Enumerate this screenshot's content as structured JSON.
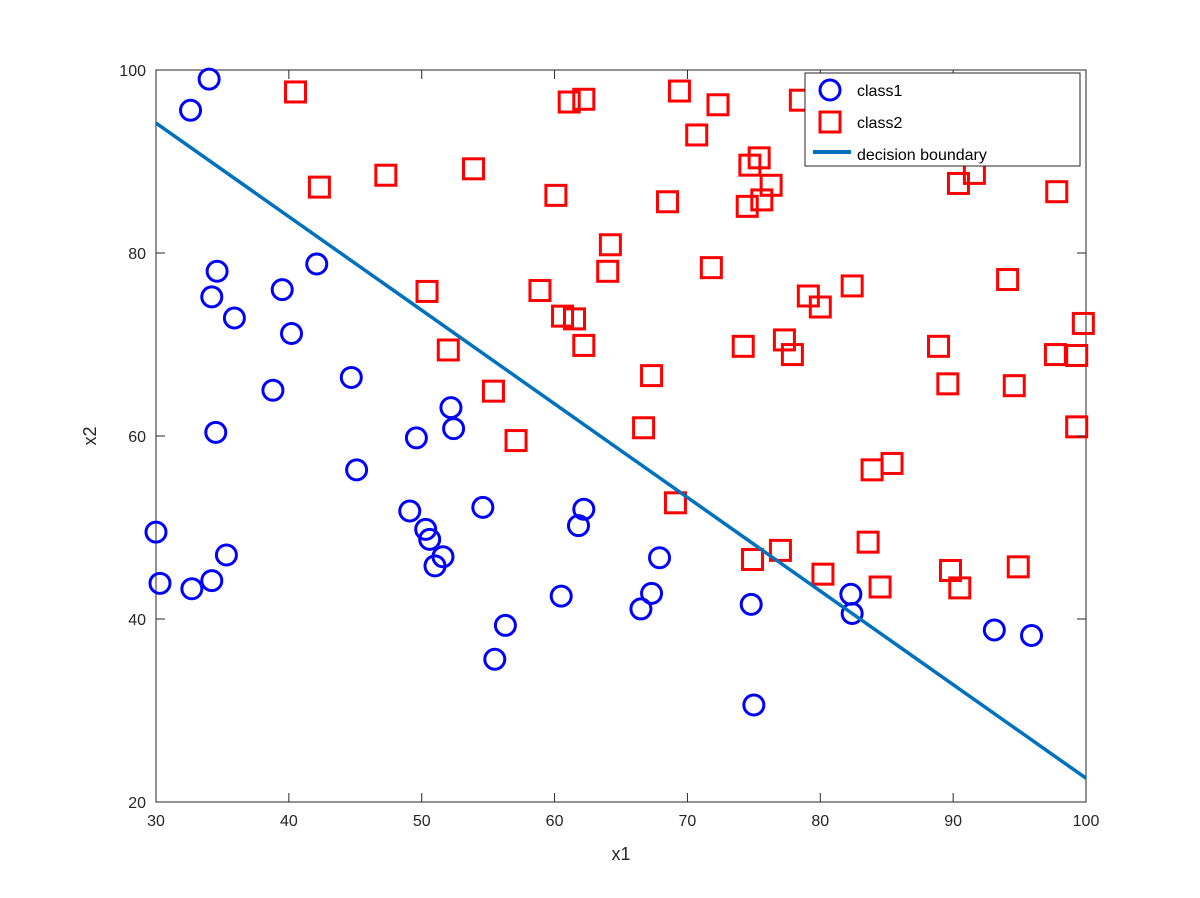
{
  "chart_data": {
    "type": "scatter",
    "xlabel": "x1",
    "ylabel": "x2",
    "xlim": [
      30,
      100
    ],
    "ylim": [
      20,
      100
    ],
    "xticks": [
      30,
      40,
      50,
      60,
      70,
      80,
      90,
      100
    ],
    "yticks": [
      20,
      40,
      60,
      80,
      100
    ],
    "grid": false,
    "legend": {
      "position": "top-right",
      "entries": [
        "class1",
        "class2",
        "decision boundary"
      ]
    },
    "colors": {
      "class1": "#0000ff",
      "class2": "#ff0000",
      "boundary": "#0072bd"
    },
    "series": [
      {
        "name": "class1",
        "marker": "circle",
        "points": [
          [
            34.0,
            99.0
          ],
          [
            32.6,
            95.6
          ],
          [
            34.6,
            78.0
          ],
          [
            34.2,
            75.2
          ],
          [
            35.9,
            72.9
          ],
          [
            39.5,
            76.0
          ],
          [
            40.2,
            71.2
          ],
          [
            42.1,
            78.8
          ],
          [
            38.8,
            65.0
          ],
          [
            44.7,
            66.4
          ],
          [
            34.5,
            60.4
          ],
          [
            45.1,
            56.3
          ],
          [
            49.6,
            59.8
          ],
          [
            52.2,
            63.1
          ],
          [
            52.4,
            60.8
          ],
          [
            30.0,
            49.5
          ],
          [
            30.3,
            43.9
          ],
          [
            32.7,
            43.3
          ],
          [
            34.2,
            44.2
          ],
          [
            35.3,
            47.0
          ],
          [
            49.1,
            51.8
          ],
          [
            50.3,
            49.8
          ],
          [
            50.6,
            48.7
          ],
          [
            51.0,
            45.8
          ],
          [
            51.6,
            46.8
          ],
          [
            54.6,
            52.2
          ],
          [
            62.2,
            52.0
          ],
          [
            61.8,
            50.2
          ],
          [
            60.5,
            42.5
          ],
          [
            56.3,
            39.3
          ],
          [
            55.5,
            35.6
          ],
          [
            66.5,
            41.1
          ],
          [
            67.3,
            42.8
          ],
          [
            67.9,
            46.7
          ],
          [
            74.8,
            41.6
          ],
          [
            75.0,
            30.6
          ],
          [
            82.3,
            42.7
          ],
          [
            82.4,
            40.6
          ],
          [
            93.1,
            38.8
          ],
          [
            95.9,
            38.2
          ]
        ]
      },
      {
        "name": "class2",
        "marker": "square",
        "points": [
          [
            40.5,
            97.6
          ],
          [
            42.3,
            87.2
          ],
          [
            47.3,
            88.5
          ],
          [
            53.9,
            89.2
          ],
          [
            61.1,
            96.5
          ],
          [
            62.2,
            96.8
          ],
          [
            69.4,
            97.7
          ],
          [
            72.3,
            96.2
          ],
          [
            70.7,
            92.9
          ],
          [
            78.5,
            96.7
          ],
          [
            60.1,
            86.3
          ],
          [
            68.5,
            85.6
          ],
          [
            74.7,
            89.6
          ],
          [
            75.4,
            90.4
          ],
          [
            74.5,
            85.1
          ],
          [
            75.6,
            85.8
          ],
          [
            76.3,
            87.4
          ],
          [
            90.4,
            87.6
          ],
          [
            91.6,
            88.7
          ],
          [
            97.8,
            86.7
          ],
          [
            64.2,
            80.9
          ],
          [
            64.0,
            78.0
          ],
          [
            71.8,
            78.4
          ],
          [
            50.4,
            75.8
          ],
          [
            58.9,
            75.9
          ],
          [
            60.6,
            73.1
          ],
          [
            61.5,
            72.8
          ],
          [
            62.2,
            69.9
          ],
          [
            52.0,
            69.4
          ],
          [
            55.4,
            64.9
          ],
          [
            67.3,
            66.6
          ],
          [
            74.2,
            69.8
          ],
          [
            77.3,
            70.5
          ],
          [
            77.9,
            68.9
          ],
          [
            79.1,
            75.3
          ],
          [
            80.0,
            74.1
          ],
          [
            82.4,
            76.4
          ],
          [
            88.9,
            69.8
          ],
          [
            89.6,
            65.7
          ],
          [
            94.1,
            77.1
          ],
          [
            94.6,
            65.5
          ],
          [
            97.7,
            68.9
          ],
          [
            99.3,
            68.8
          ],
          [
            99.8,
            72.3
          ],
          [
            99.3,
            61.0
          ],
          [
            57.1,
            59.5
          ],
          [
            66.7,
            60.9
          ],
          [
            69.1,
            52.7
          ],
          [
            83.9,
            56.3
          ],
          [
            85.4,
            57.0
          ],
          [
            74.9,
            46.5
          ],
          [
            77.0,
            47.5
          ],
          [
            80.2,
            44.9
          ],
          [
            83.6,
            48.4
          ],
          [
            84.5,
            43.5
          ],
          [
            89.8,
            45.3
          ],
          [
            90.5,
            43.4
          ],
          [
            94.9,
            45.7
          ]
        ]
      }
    ],
    "boundary": {
      "name": "decision boundary",
      "x": [
        30,
        100
      ],
      "y": [
        94.2,
        22.6
      ]
    }
  }
}
